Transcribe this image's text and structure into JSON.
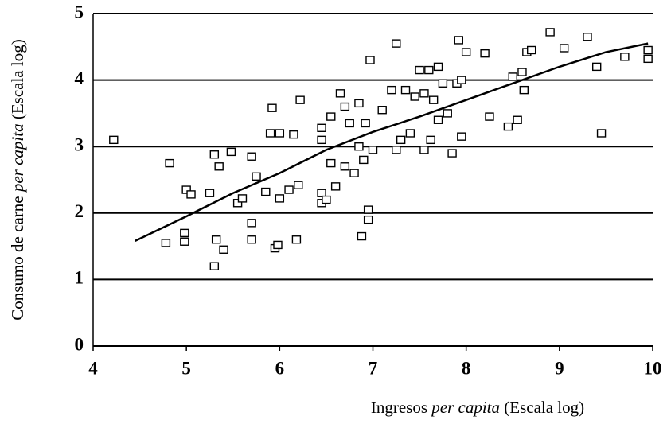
{
  "chart_data": {
    "type": "scatter",
    "ylabel": [
      "Consumo de carne ",
      "per capita",
      " (Escala log)"
    ],
    "xlabel": [
      "Ingresos ",
      "per capita",
      " (Escala log)"
    ],
    "xlim": [
      4,
      10
    ],
    "xticks": [
      4,
      5,
      6,
      7,
      8,
      9,
      10
    ],
    "ylim": [
      0,
      5
    ],
    "yticks": [
      0,
      1,
      2,
      3,
      4,
      5
    ],
    "grid": true,
    "color": "#000000",
    "x": [
      4.22,
      4.78,
      4.82,
      4.98,
      4.98,
      5.0,
      5.05,
      5.25,
      5.3,
      5.3,
      5.32,
      5.35,
      5.4,
      5.48,
      5.55,
      5.6,
      5.7,
      5.7,
      5.7,
      5.75,
      5.85,
      5.9,
      5.92,
      5.95,
      5.98,
      6.0,
      6.0,
      6.1,
      6.15,
      6.18,
      6.2,
      6.22,
      6.45,
      6.45,
      6.45,
      6.45,
      6.5,
      6.55,
      6.55,
      6.6,
      6.65,
      6.7,
      6.7,
      6.75,
      6.8,
      6.85,
      6.85,
      6.88,
      6.9,
      6.92,
      6.95,
      6.95,
      6.97,
      7.0,
      7.1,
      7.2,
      7.25,
      7.25,
      7.3,
      7.35,
      7.4,
      7.45,
      7.5,
      7.55,
      7.55,
      7.6,
      7.62,
      7.65,
      7.7,
      7.7,
      7.75,
      7.8,
      7.85,
      7.9,
      7.92,
      7.95,
      7.95,
      8.0,
      8.2,
      8.25,
      8.45,
      8.5,
      8.55,
      8.6,
      8.62,
      8.65,
      8.7,
      8.9,
      9.05,
      9.3,
      9.4,
      9.45,
      9.7,
      9.95,
      9.95
    ],
    "y": [
      3.1,
      1.55,
      2.75,
      1.7,
      1.57,
      2.35,
      2.28,
      2.3,
      1.2,
      2.88,
      1.6,
      2.7,
      1.45,
      2.92,
      2.15,
      2.22,
      2.85,
      1.85,
      1.6,
      2.55,
      2.32,
      3.2,
      3.58,
      1.47,
      1.52,
      3.2,
      2.22,
      2.35,
      3.18,
      1.6,
      2.42,
      3.7,
      3.28,
      3.1,
      2.3,
      2.15,
      2.2,
      2.75,
      3.45,
      2.4,
      3.8,
      3.6,
      2.7,
      3.35,
      2.6,
      3.65,
      3.0,
      1.65,
      2.8,
      3.35,
      2.05,
      1.9,
      4.3,
      2.95,
      3.55,
      3.85,
      4.55,
      2.95,
      3.1,
      3.85,
      3.2,
      3.75,
      4.15,
      3.8,
      2.95,
      4.15,
      3.1,
      3.7,
      3.4,
      4.2,
      3.95,
      3.5,
      2.9,
      3.95,
      4.6,
      4.0,
      3.15,
      4.42,
      4.4,
      3.45,
      3.3,
      4.05,
      3.4,
      4.12,
      3.85,
      4.42,
      4.45,
      4.72,
      4.48,
      4.65,
      4.2,
      3.2,
      4.35,
      4.45,
      4.32
    ],
    "fit": {
      "x": [
        4.45,
        5,
        5.5,
        6,
        6.5,
        7,
        7.5,
        8,
        8.5,
        9,
        9.5,
        9.95
      ],
      "y": [
        1.58,
        1.95,
        2.3,
        2.6,
        2.95,
        3.22,
        3.45,
        3.7,
        3.95,
        4.2,
        4.42,
        4.55
      ]
    }
  }
}
